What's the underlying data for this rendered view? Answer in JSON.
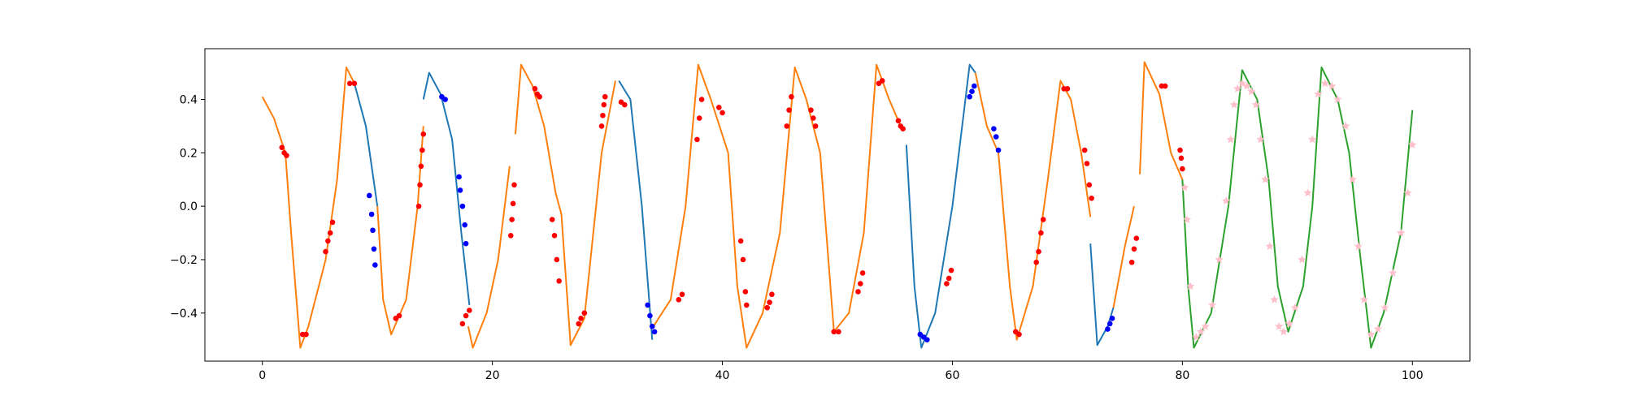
{
  "chart_data": {
    "type": "line",
    "xlim": [
      -5,
      105
    ],
    "ylim": [
      -0.58,
      0.59
    ],
    "xticks": [
      0,
      20,
      40,
      60,
      80,
      100
    ],
    "yticks": [
      {
        "value": -0.4,
        "label": "−0.4"
      },
      {
        "value": -0.2,
        "label": "−0.2"
      },
      {
        "value": 0,
        "label": "0.0"
      },
      0.2,
      0.4
    ],
    "grid": false,
    "series": [
      {
        "type": "line",
        "color": "#ff7f0e",
        "x": [
          0,
          1,
          2,
          2.5,
          3.3,
          4,
          5.5,
          6.5,
          7.3,
          8,
          8.3,
          10,
          10.5,
          11.2,
          12.5,
          13.5,
          14,
          14.1,
          17.9,
          18.3,
          19.5,
          20.5,
          21.5,
          21.8,
          22,
          22.5,
          23.5,
          24.5,
          25.5,
          26,
          26.8,
          28,
          29.5,
          30.7,
          31.2,
          34,
          35.5,
          36.8,
          37.9,
          39,
          40.5,
          41.3,
          42.1,
          43.5,
          45,
          46.3,
          47.3,
          48.5,
          49.7,
          51,
          52.3,
          53.4,
          54.5,
          55.5,
          55.8,
          62,
          63,
          64,
          65,
          65.6,
          67,
          68.3,
          69.4,
          70.3,
          71.2,
          72,
          72.2,
          74,
          75,
          75.8,
          76.2,
          76.3,
          76.7,
          78,
          79,
          80
        ],
        "values": [
          0.41,
          0.33,
          0.2,
          -0.1,
          -0.53,
          -0.45,
          -0.2,
          0.1,
          0.52,
          0.46,
          null,
          0.0,
          -0.35,
          -0.48,
          -0.35,
          0.0,
          0.3,
          null,
          -0.45,
          -0.53,
          -0.4,
          -0.2,
          0.15,
          null,
          0.27,
          0.53,
          0.45,
          0.3,
          0.05,
          -0.03,
          -0.52,
          -0.42,
          0.2,
          0.47,
          null,
          -0.45,
          -0.35,
          0.0,
          0.53,
          0.4,
          0.2,
          -0.3,
          -0.53,
          -0.4,
          -0.1,
          0.52,
          0.4,
          0.2,
          -0.47,
          -0.4,
          -0.1,
          0.53,
          0.4,
          0.3,
          null,
          0.5,
          0.3,
          0.2,
          -0.3,
          -0.5,
          -0.3,
          0.1,
          0.47,
          0.4,
          0.2,
          -0.04,
          null,
          -0.38,
          -0.15,
          0.0,
          null,
          0.12,
          0.54,
          0.42,
          0.2,
          0.1
        ]
      },
      {
        "type": "line",
        "color": "#1f77b4",
        "x": [
          8,
          9,
          10,
          10.1,
          14,
          14.5,
          15.5,
          16.5,
          17.3,
          18,
          18.1,
          31,
          32,
          33,
          33.9,
          34.1,
          56,
          56.7,
          57.3,
          58.5,
          60,
          61.5,
          62,
          62.1,
          72,
          72.6,
          73.5,
          74
        ],
        "values": [
          0.46,
          0.3,
          0.0,
          null,
          0.4,
          0.5,
          0.42,
          0.25,
          -0.1,
          -0.37,
          null,
          0.47,
          0.4,
          0.0,
          -0.5,
          null,
          0.23,
          -0.3,
          -0.53,
          -0.4,
          0.0,
          0.53,
          0.5,
          null,
          -0.14,
          -0.52,
          -0.45,
          -0.38
        ]
      },
      {
        "type": "line",
        "color": "#2ca02c",
        "x": [
          80,
          80.5,
          81,
          82.5,
          84,
          85.2,
          86.5,
          87.5,
          88.3,
          89.2,
          90.5,
          91.3,
          92.1,
          93.5,
          94.5,
          95.5,
          96.4,
          97.5,
          99,
          100
        ],
        "values": [
          0.1,
          -0.3,
          -0.53,
          -0.4,
          0.0,
          0.51,
          0.4,
          0.1,
          -0.3,
          -0.47,
          -0.3,
          0.0,
          0.52,
          0.4,
          0.2,
          -0.2,
          -0.53,
          -0.4,
          -0.1,
          0.36
        ]
      },
      {
        "type": "scatter",
        "marker": "circle",
        "color": "red",
        "x": [
          1.7,
          1.9,
          2.1,
          3.5,
          3.8,
          5.5,
          5.7,
          5.9,
          6.1,
          7.6,
          8,
          11.6,
          11.9,
          13.6,
          13.7,
          13.8,
          13.9,
          14,
          17.4,
          17.7,
          18,
          21.6,
          21.7,
          21.8,
          21.9,
          23.7,
          23.9,
          24.1,
          25.2,
          25.4,
          25.6,
          25.8,
          27.5,
          27.7,
          28,
          29.5,
          29.6,
          29.7,
          29.8,
          31.2,
          31.5,
          36.2,
          36.5,
          37.8,
          38,
          38.2,
          39.7,
          40,
          41.6,
          41.8,
          42,
          42.1,
          43.9,
          44.1,
          44.3,
          45.6,
          45.8,
          46,
          47.7,
          47.9,
          48.1,
          49.7,
          50.1,
          51.8,
          52,
          52.2,
          53.6,
          53.9,
          55.3,
          55.5,
          55.7,
          59.5,
          59.7,
          59.9,
          65.5,
          65.8,
          67.3,
          67.5,
          67.7,
          67.9,
          69.7,
          70,
          71.5,
          71.7,
          71.9,
          72.1,
          75.6,
          75.8,
          76,
          78.2,
          78.5,
          79.8,
          79.9,
          80
        ],
        "values": [
          0.22,
          0.2,
          0.19,
          -0.48,
          -0.48,
          -0.17,
          -0.13,
          -0.1,
          -0.06,
          0.46,
          0.46,
          -0.42,
          -0.41,
          0.0,
          0.08,
          0.15,
          0.21,
          0.27,
          -0.44,
          -0.41,
          -0.39,
          -0.11,
          -0.05,
          0.01,
          0.08,
          0.44,
          0.42,
          0.41,
          -0.05,
          -0.11,
          -0.2,
          -0.28,
          -0.44,
          -0.42,
          -0.4,
          0.3,
          0.34,
          0.38,
          0.41,
          0.39,
          0.38,
          -0.35,
          -0.33,
          0.25,
          0.33,
          0.4,
          0.37,
          0.35,
          -0.13,
          -0.2,
          -0.32,
          -0.37,
          -0.38,
          -0.36,
          -0.33,
          0.3,
          0.36,
          0.41,
          0.36,
          0.33,
          0.3,
          -0.47,
          -0.47,
          -0.32,
          -0.29,
          -0.25,
          0.46,
          0.47,
          0.32,
          0.3,
          0.29,
          -0.29,
          -0.27,
          -0.24,
          -0.47,
          -0.48,
          -0.21,
          -0.17,
          -0.1,
          -0.05,
          0.44,
          0.44,
          0.21,
          0.16,
          0.08,
          0.03,
          -0.21,
          -0.16,
          -0.12,
          0.45,
          0.45,
          0.21,
          0.18,
          0.14
        ]
      },
      {
        "type": "scatter",
        "marker": "circle",
        "color": "blue",
        "x": [
          9.3,
          9.5,
          9.6,
          9.7,
          9.8,
          15.6,
          15.9,
          17.1,
          17.2,
          17.4,
          17.6,
          17.7,
          33.5,
          33.7,
          33.9,
          34.1,
          57.2,
          57.5,
          57.8,
          61.5,
          61.7,
          61.9,
          63.6,
          63.8,
          64,
          73.5,
          73.7,
          73.9
        ],
        "values": [
          0.04,
          -0.03,
          -0.09,
          -0.16,
          -0.22,
          0.41,
          0.4,
          0.11,
          0.06,
          0.0,
          -0.07,
          -0.14,
          -0.37,
          -0.41,
          -0.45,
          -0.47,
          -0.48,
          -0.49,
          -0.5,
          0.41,
          0.43,
          0.45,
          0.29,
          0.26,
          0.21,
          -0.46,
          -0.44,
          -0.42
        ]
      },
      {
        "type": "scatter",
        "marker": "star",
        "color": "pink",
        "x": [
          80.2,
          80.4,
          80.7,
          81.2,
          81.6,
          82,
          82.6,
          83.2,
          83.8,
          84.2,
          84.5,
          84.8,
          85.2,
          85.6,
          86,
          86.4,
          86.8,
          87.2,
          87.6,
          88,
          88.4,
          88.8,
          89.3,
          89.8,
          90.4,
          90.9,
          91.3,
          91.8,
          92.4,
          93,
          93.5,
          94.2,
          94.8,
          95.3,
          95.8,
          96.4,
          97,
          97.6,
          98.3,
          99,
          99.6,
          100
        ],
        "values": [
          0.07,
          -0.05,
          -0.3,
          -0.49,
          -0.47,
          -0.45,
          -0.37,
          -0.2,
          0.02,
          0.25,
          0.38,
          0.44,
          0.46,
          0.45,
          0.43,
          0.38,
          0.25,
          0.1,
          -0.15,
          -0.35,
          -0.45,
          -0.47,
          -0.44,
          -0.38,
          -0.2,
          0.05,
          0.25,
          0.42,
          0.46,
          0.45,
          0.4,
          0.3,
          0.1,
          -0.15,
          -0.35,
          -0.48,
          -0.46,
          -0.38,
          -0.25,
          -0.1,
          0.05,
          0.23
        ]
      }
    ]
  }
}
